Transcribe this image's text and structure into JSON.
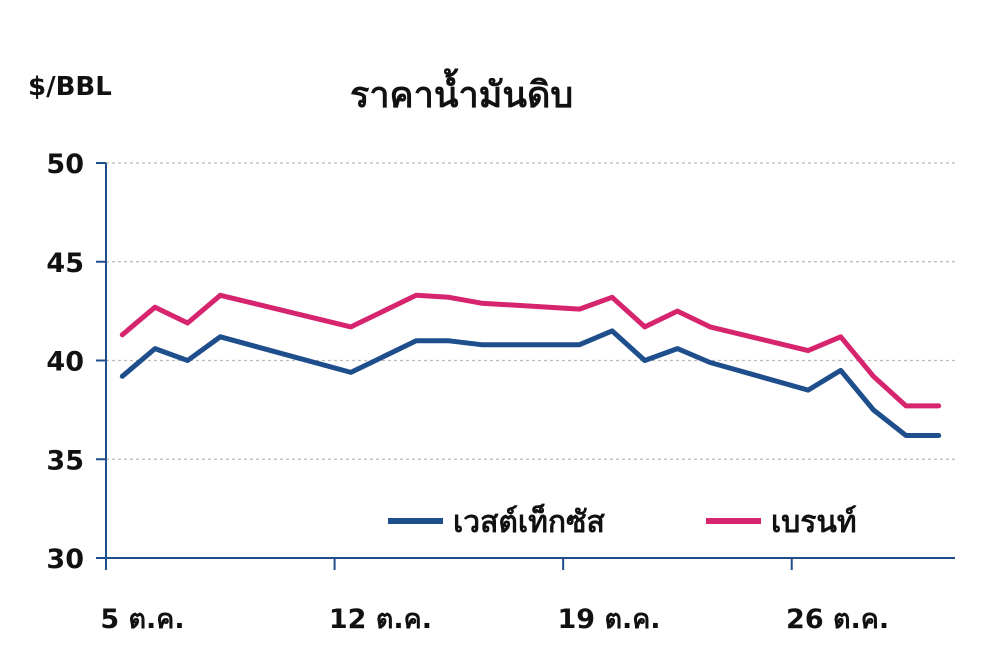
{
  "chart_data": {
    "type": "line",
    "title": "ราคาน้ำมันดิบ",
    "ylabel": "$/BBL",
    "xlabel": "",
    "ylim": [
      30,
      50
    ],
    "yticks": [
      "50",
      "45",
      "40",
      "35",
      "30"
    ],
    "x_tick_labels": [
      "5 ต.ค.",
      "12 ต.ค.",
      "19 ต.ค.",
      "26 ต.ค."
    ],
    "x": [
      5,
      6,
      7,
      8,
      12,
      14,
      15,
      16,
      19,
      20,
      21,
      22,
      23,
      26,
      27,
      28,
      29,
      30
    ],
    "grid": true,
    "legend_position": "bottom-right",
    "series": [
      {
        "name": "เวสต์เท็กซัส",
        "color": "#1f4e8c",
        "values": [
          39.2,
          40.6,
          40.0,
          41.2,
          39.4,
          41.0,
          41.0,
          40.8,
          40.8,
          41.5,
          40.0,
          40.6,
          39.9,
          38.5,
          39.5,
          37.5,
          36.2,
          36.2
        ]
      },
      {
        "name": "เบรนท์",
        "color": "#d6246e",
        "values": [
          41.3,
          42.7,
          41.9,
          43.3,
          41.7,
          43.3,
          43.2,
          42.9,
          42.6,
          43.2,
          41.7,
          42.5,
          41.7,
          40.5,
          41.2,
          39.2,
          37.7,
          37.7
        ]
      }
    ]
  }
}
